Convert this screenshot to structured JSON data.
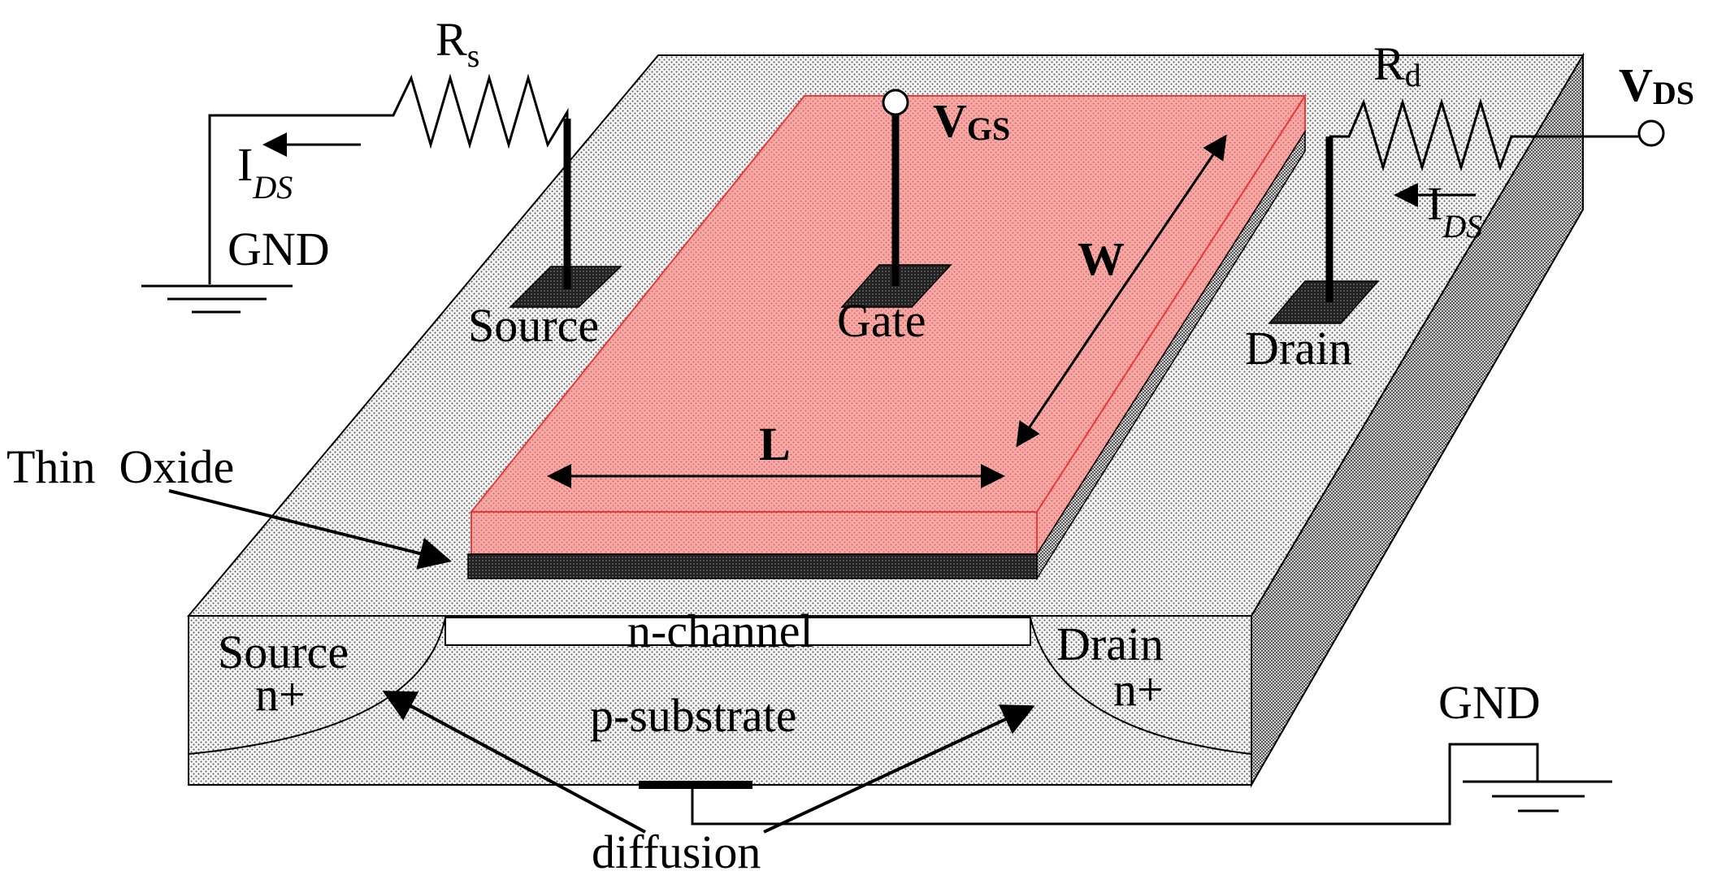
{
  "labels": {
    "rs_main": "R",
    "rs_sub": "s",
    "rd_main": "R",
    "rd_sub": "d",
    "ids_left_main": "I",
    "ids_left_sub": "DS",
    "ids_right_main": "I",
    "ids_right_sub": "DS",
    "gnd_top": "GND",
    "gnd_bottom": "GND",
    "vgs_main": "V",
    "vgs_sub": "GS",
    "vds_main": "V",
    "vds_sub": "DS",
    "source_contact": "Source",
    "gate_contact": "Gate",
    "drain_contact": "Drain",
    "width": "W",
    "length": "L",
    "thin_oxide": "Thin  Oxide",
    "n_channel": "n-channel",
    "source_region": "Source",
    "source_doping": "n+",
    "drain_region": "Drain",
    "drain_doping": "n+",
    "substrate": "p-substrate",
    "diffusion": "diffusion"
  },
  "colors": {
    "gate": "#f6a7a4",
    "gate_edge": "#e83a3a",
    "block": "#e9e9e9",
    "oxide": "#333333"
  }
}
